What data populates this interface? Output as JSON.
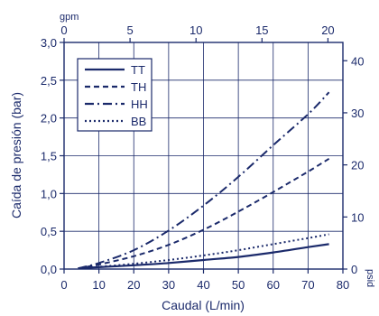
{
  "chart_data": {
    "type": "line",
    "title": "",
    "xlabel": "Caudal (L/min)",
    "ylabel": "Caída de presión (bar)",
    "xlim": [
      0,
      80
    ],
    "ylim": [
      0,
      3.0
    ],
    "x_ticks": [
      "0",
      "10",
      "20",
      "30",
      "40",
      "50",
      "60",
      "70",
      "80"
    ],
    "y_ticks": [
      "0,0",
      "0,5",
      "1,0",
      "1,5",
      "2,0",
      "2,5",
      "3,0"
    ],
    "top_axis": {
      "label": "gpm",
      "ticks": [
        "0",
        "5",
        "10",
        "15",
        "20"
      ],
      "values": [
        0,
        5,
        10,
        15,
        20
      ]
    },
    "right_axis": {
      "label": "psid",
      "ticks": [
        "0",
        "10",
        "20",
        "30",
        "40"
      ],
      "values": [
        0,
        10,
        20,
        30,
        40
      ]
    },
    "grid": true,
    "legend": "top-left",
    "series": [
      {
        "name": "TT",
        "style": "solid",
        "x": [
          4,
          10,
          20,
          30,
          40,
          50,
          60,
          70,
          76
        ],
        "y": [
          0.01,
          0.025,
          0.05,
          0.08,
          0.12,
          0.16,
          0.22,
          0.29,
          0.33
        ]
      },
      {
        "name": "TH",
        "style": "dashed",
        "x": [
          4,
          10,
          20,
          30,
          40,
          50,
          60,
          70,
          76
        ],
        "y": [
          0.01,
          0.06,
          0.17,
          0.32,
          0.52,
          0.76,
          1.02,
          1.29,
          1.46
        ]
      },
      {
        "name": "HH",
        "style": "dashdot",
        "x": [
          4,
          10,
          20,
          30,
          40,
          50,
          60,
          70,
          76
        ],
        "y": [
          0.01,
          0.08,
          0.25,
          0.51,
          0.84,
          1.22,
          1.64,
          2.05,
          2.34
        ]
      },
      {
        "name": "BB",
        "style": "dotted",
        "x": [
          4,
          10,
          20,
          30,
          40,
          50,
          60,
          70,
          76
        ],
        "y": [
          0.01,
          0.03,
          0.07,
          0.12,
          0.18,
          0.25,
          0.33,
          0.41,
          0.46
        ]
      }
    ],
    "colors": {
      "ink": "#1b2a6b"
    }
  }
}
